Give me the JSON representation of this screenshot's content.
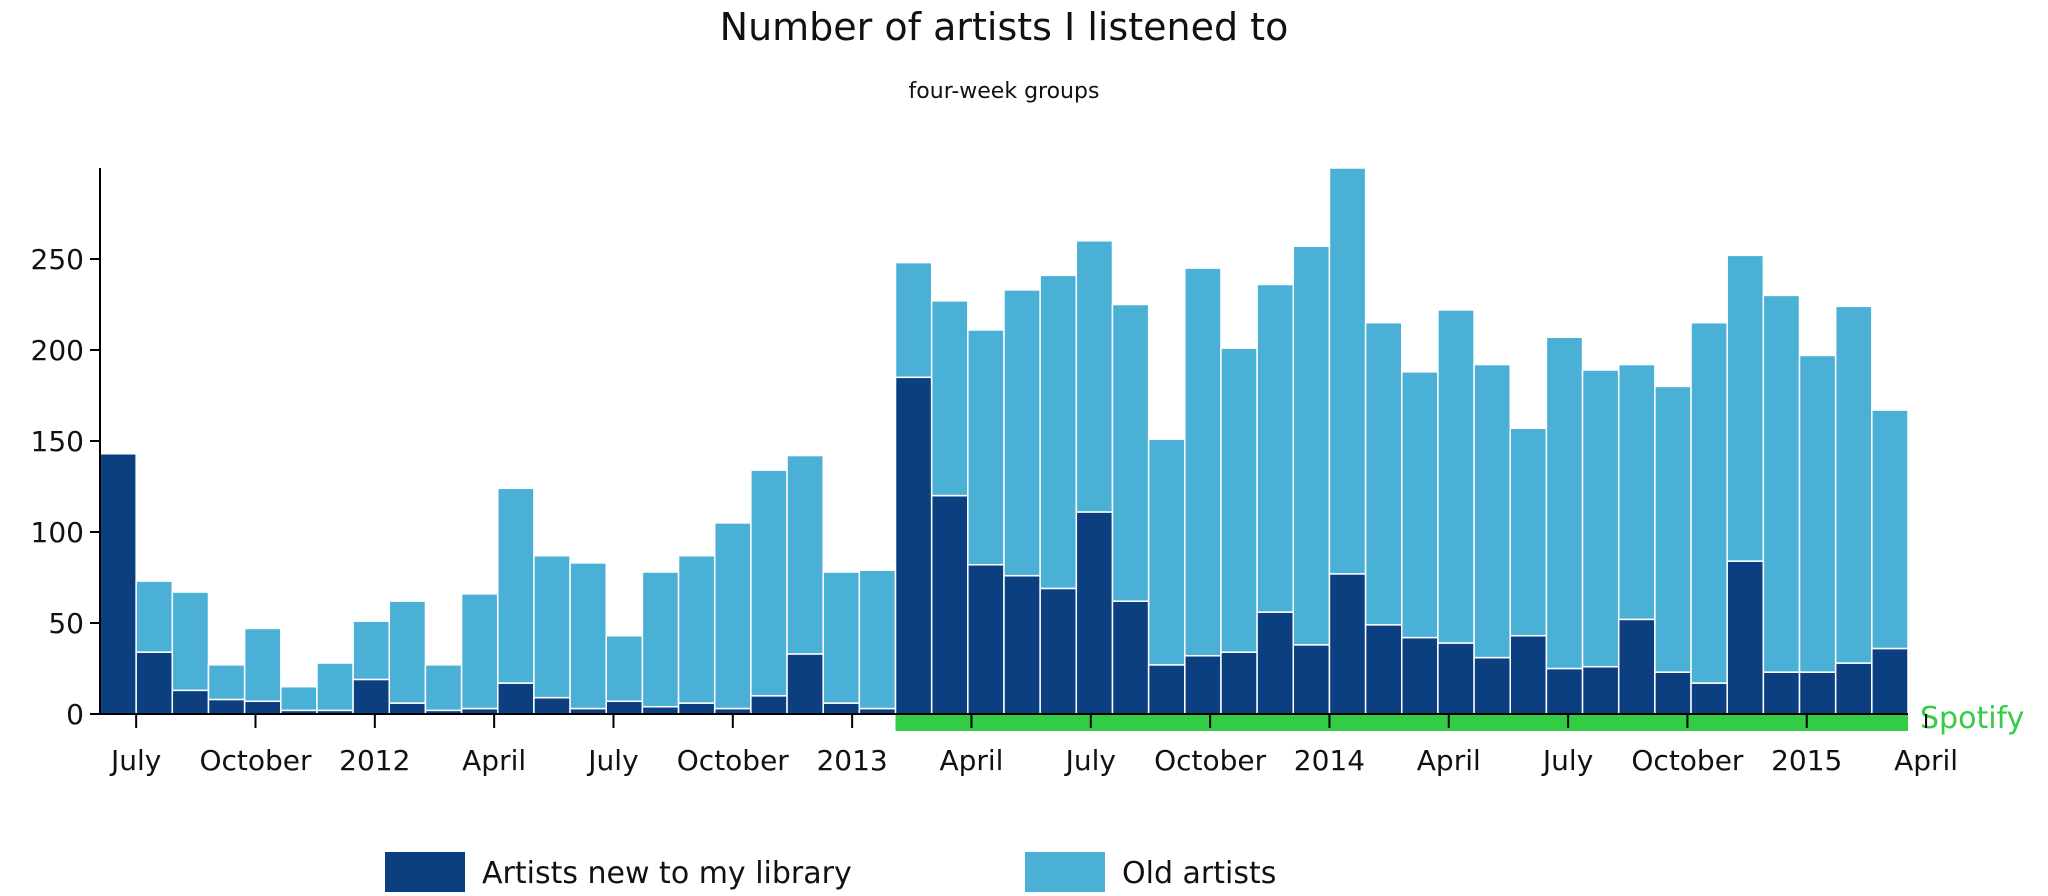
{
  "chart_data": {
    "type": "bar",
    "stacked": true,
    "title": "Number of artists I listened to",
    "subtitle": "four-week groups",
    "xlabel": "",
    "ylabel": "",
    "ylim": [
      0,
      300
    ],
    "yticks": [
      0,
      50,
      100,
      150,
      200,
      250
    ],
    "xtick_labels": [
      "July",
      "October",
      "2012",
      "April",
      "July",
      "October",
      "2013",
      "April",
      "July",
      "October",
      "2014",
      "April",
      "July",
      "October",
      "2015",
      "April"
    ],
    "xtick_positions": [
      1,
      4.3,
      7.6,
      10.9,
      14.2,
      17.5,
      20.8,
      24.1,
      27.4,
      30.7,
      34,
      37.3,
      40.6,
      43.9,
      47.2,
      50.5
    ],
    "series": [
      {
        "name": "Artists new to my library",
        "color": "#0b3f80",
        "values": [
          143,
          34,
          13,
          8,
          7,
          2,
          2,
          19,
          6,
          2,
          3,
          17,
          9,
          3,
          7,
          4,
          6,
          3,
          10,
          33,
          6,
          3,
          185,
          120,
          82,
          76,
          69,
          111,
          62,
          27,
          32,
          34,
          56,
          38,
          77,
          49,
          42,
          39,
          31,
          43,
          25,
          26,
          52,
          23,
          17,
          84,
          23,
          23,
          28,
          36
        ]
      },
      {
        "name": "Old artists",
        "color": "#4ab0d5",
        "values": [
          0,
          39,
          54,
          19,
          40,
          13,
          26,
          32,
          56,
          25,
          63,
          107,
          78,
          80,
          36,
          74,
          81,
          102,
          124,
          109,
          72,
          76,
          63,
          107,
          129,
          157,
          172,
          149,
          163,
          124,
          213,
          167,
          180,
          219,
          223,
          166,
          146,
          183,
          161,
          114,
          182,
          163,
          140,
          157,
          198,
          168,
          207,
          174,
          196,
          131
        ]
      }
    ],
    "totals": [
      143,
      73,
      67,
      27,
      47,
      15,
      28,
      51,
      62,
      27,
      66,
      124,
      87,
      83,
      43,
      78,
      87,
      105,
      134,
      142,
      78,
      79,
      248,
      227,
      211,
      233,
      241,
      260,
      225,
      151,
      245,
      201,
      236,
      257,
      300,
      215,
      188,
      222,
      192,
      157,
      207,
      189,
      192,
      180,
      215,
      252,
      230,
      197,
      224,
      167
    ],
    "annotation": {
      "label": "Spotify",
      "start_index": 22,
      "end_index": 49,
      "color": "#33cc44"
    },
    "legend": {
      "placement": "bottom-center",
      "items": [
        {
          "label": "Artists new to my library",
          "color": "#0b3f80"
        },
        {
          "label": "Old artists",
          "color": "#4ab0d5"
        }
      ]
    },
    "grid": false
  }
}
